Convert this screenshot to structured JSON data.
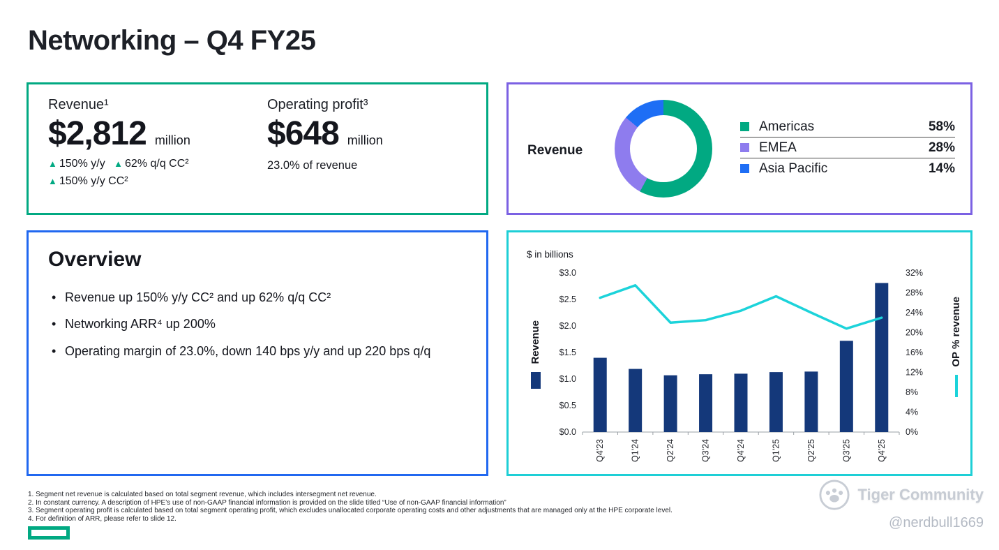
{
  "title": "Networking – Q4 FY25",
  "icons": {
    "up_triangle": "▲"
  },
  "kpis": {
    "revenue": {
      "label": "Revenue¹",
      "value": "$2,812",
      "unit": "million",
      "deltas_row1": [
        {
          "text": "150% y/y"
        },
        {
          "text": "62% q/q CC²"
        }
      ],
      "deltas_row2": [
        {
          "text": "150% y/y CC²"
        }
      ]
    },
    "operating_profit": {
      "label": "Operating profit³",
      "value": "$648",
      "unit": "million",
      "subtext": "23.0% of revenue"
    }
  },
  "overview": {
    "heading": "Overview",
    "bullets": [
      "Revenue up 150% y/y CC² and up 62% q/q CC²",
      "Networking ARR⁴ up 200%",
      "Operating margin of 23.0%, down 140 bps y/y and up 220 bps q/q"
    ]
  },
  "chart_data": [
    {
      "type": "pie",
      "donut": true,
      "title": "Revenue",
      "legend_position": "right",
      "segments": [
        {
          "label": "Americas",
          "value": 58,
          "pct": "58%",
          "color": "#01A982"
        },
        {
          "label": "EMEA",
          "value": 28,
          "pct": "28%",
          "color": "#8E7CEE"
        },
        {
          "label": "Asia Pacific",
          "value": 14,
          "pct": "14%",
          "color": "#1E6EF5"
        }
      ]
    },
    {
      "type": "bar",
      "combo": "bar+line",
      "units_label": "$ in billions",
      "categories": [
        "Q4'23",
        "Q1'24",
        "Q2'24",
        "Q3'24",
        "Q4'24",
        "Q1'25",
        "Q2'25",
        "Q3'25",
        "Q4'25"
      ],
      "series": [
        {
          "name": "Revenue",
          "kind": "bar",
          "axis": "left",
          "color": "#14387A",
          "values": [
            1.4,
            1.19,
            1.07,
            1.09,
            1.1,
            1.13,
            1.14,
            1.72,
            2.81
          ]
        },
        {
          "name": "OP % revenue",
          "kind": "line",
          "axis": "right",
          "color": "#1CD3DA",
          "values": [
            27.0,
            29.5,
            22.0,
            22.5,
            24.4,
            27.3,
            24.0,
            20.8,
            23.0
          ]
        }
      ],
      "left_axis": {
        "min": 0,
        "max": 3,
        "step": 0.5,
        "ticks": [
          "$0.0",
          "$0.5",
          "$1.0",
          "$1.5",
          "$2.0",
          "$2.5",
          "$3.0"
        ]
      },
      "right_axis": {
        "min": 0,
        "max": 32,
        "step": 4,
        "ticks": [
          "0%",
          "4%",
          "8%",
          "12%",
          "16%",
          "20%",
          "24%",
          "28%",
          "32%"
        ]
      },
      "grid": false,
      "legend_position": "sides"
    }
  ],
  "footnotes": [
    "1. Segment net revenue is calculated based on total segment revenue, which includes intersegment net revenue.",
    "2. In constant currency. A description of HPE’s use of non-GAAP financial information is provided on the slide titled “Use of non-GAAP financial information”",
    "3. Segment operating profit is calculated based on total segment operating profit, which excludes unallocated corporate operating costs and other adjustments that are managed only at the HPE corporate level.",
    "4. For definition of ARR, please refer to slide 12."
  ],
  "watermark": {
    "brand": "Tiger Community",
    "handle": "@nerdbull1669"
  },
  "colors": {
    "green": "#01A982",
    "purple": "#7B61E3",
    "blue": "#2168F0",
    "cyan": "#1ECFD6",
    "navy": "#14387A",
    "ink": "#171A21"
  }
}
